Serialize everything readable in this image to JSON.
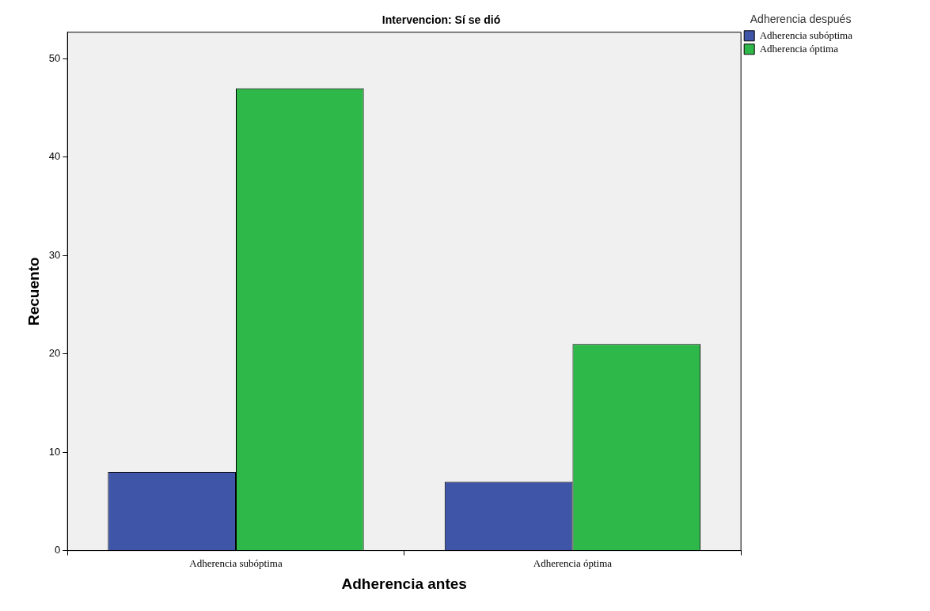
{
  "chart_data": {
    "type": "bar",
    "title": "Intervencion: Sí se dió",
    "xlabel": "Adherencia antes",
    "ylabel": "Recuento",
    "legend_title": "Adherencia después",
    "categories": [
      "Adherencia subóptima",
      "Adherencia óptima"
    ],
    "series": [
      {
        "name": "Adherencia subóptima",
        "color": "#3f55a8",
        "values": [
          8,
          7
        ]
      },
      {
        "name": "Adherencia óptima",
        "color": "#2fb84a",
        "values": [
          47,
          21
        ]
      }
    ],
    "ylim": [
      0,
      52.7
    ],
    "yticks": [
      0,
      10,
      20,
      30,
      40,
      50
    ],
    "grid": false,
    "legend": "top right"
  }
}
